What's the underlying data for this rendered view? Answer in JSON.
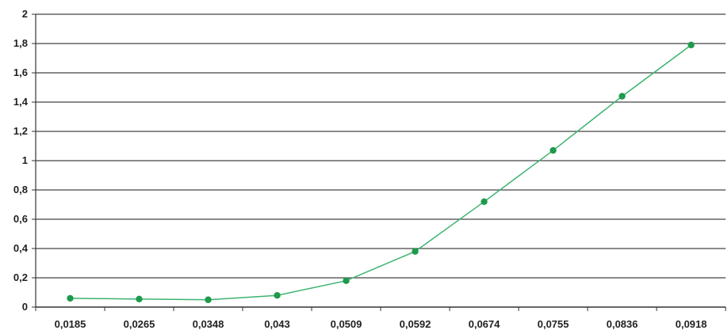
{
  "chart_data": {
    "type": "line",
    "categories": [
      "0,0185",
      "0,0265",
      "0,0348",
      "0,043",
      "0,0509",
      "0,0592",
      "0,0674",
      "0,0755",
      "0,0836",
      "0,0918"
    ],
    "series": [
      {
        "values": [
          0.06,
          0.055,
          0.05,
          0.08,
          0.18,
          0.38,
          0.72,
          1.07,
          1.44,
          1.79
        ],
        "color": "#3cb371",
        "marker_color": "#1e9a4c"
      }
    ],
    "y_ticks": [
      "0",
      "0,2",
      "0,4",
      "0,6",
      "0,8",
      "1",
      "1,2",
      "1,4",
      "1,6",
      "1,8",
      "2"
    ],
    "ylim": [
      0,
      2
    ],
    "grid": true,
    "legend": "none",
    "title": "",
    "xlabel": "",
    "ylabel": ""
  }
}
